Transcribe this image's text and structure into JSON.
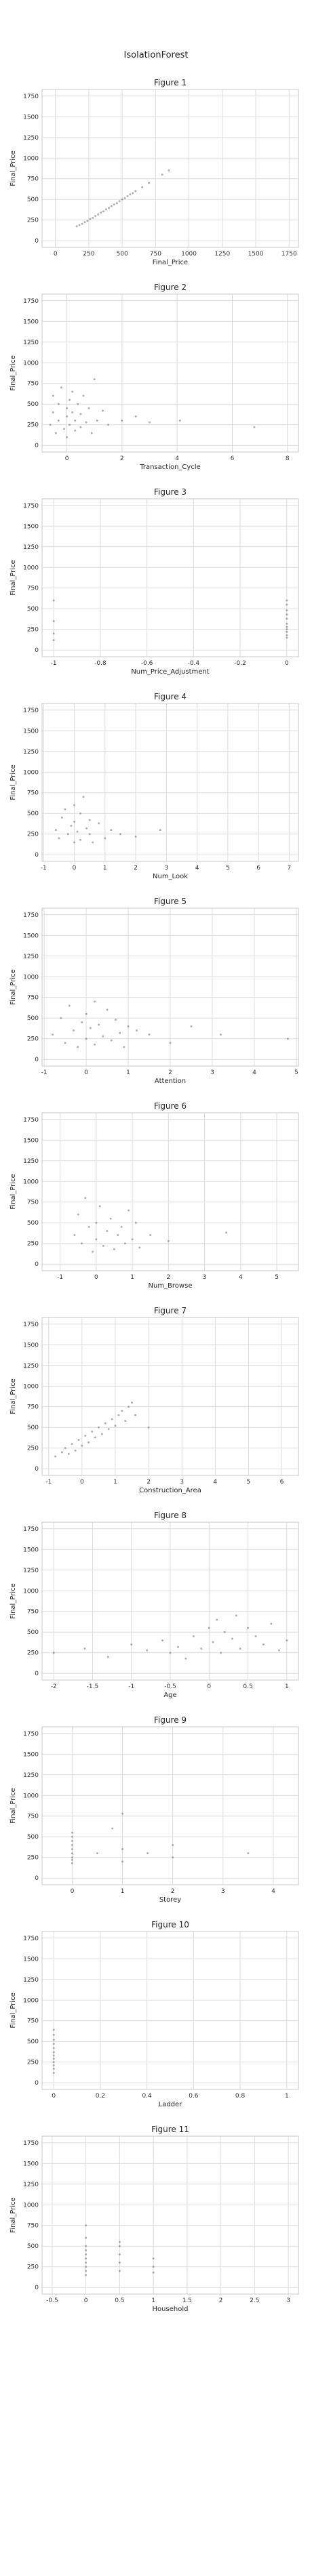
{
  "suptitle": "IsolationForest",
  "chart_data": [
    {
      "type": "scatter",
      "title": "Figure 1",
      "xlabel": "Final_Price",
      "ylabel": "Final_Price",
      "xlim": [
        -100,
        1820
      ],
      "ylim": [
        -80,
        1830
      ],
      "xticks": [
        0,
        250,
        500,
        750,
        1000,
        1250,
        1500,
        1750
      ],
      "yticks": [
        0,
        250,
        500,
        750,
        1000,
        1250,
        1500,
        1750
      ],
      "points": [
        [
          160,
          175
        ],
        [
          180,
          190
        ],
        [
          200,
          205
        ],
        [
          220,
          225
        ],
        [
          240,
          240
        ],
        [
          260,
          262
        ],
        [
          280,
          278
        ],
        [
          300,
          300
        ],
        [
          320,
          318
        ],
        [
          340,
          340
        ],
        [
          360,
          355
        ],
        [
          380,
          380
        ],
        [
          400,
          398
        ],
        [
          420,
          418
        ],
        [
          440,
          440
        ],
        [
          460,
          455
        ],
        [
          480,
          478
        ],
        [
          500,
          500
        ],
        [
          520,
          515
        ],
        [
          540,
          540
        ],
        [
          560,
          560
        ],
        [
          580,
          575
        ],
        [
          600,
          600
        ],
        [
          650,
          648
        ],
        [
          700,
          700
        ],
        [
          800,
          800
        ],
        [
          850,
          850
        ]
      ]
    },
    {
      "type": "scatter",
      "title": "Figure 2",
      "xlabel": "Transaction_Cycle",
      "ylabel": "Final_Price",
      "xlim": [
        -0.9,
        8.4
      ],
      "ylim": [
        -80,
        1830
      ],
      "xticks": [
        0,
        2,
        4,
        6,
        8
      ],
      "yticks": [
        0,
        250,
        500,
        750,
        1000,
        1250,
        1500,
        1750
      ],
      "points": [
        [
          -0.6,
          250
        ],
        [
          -0.5,
          400
        ],
        [
          -0.5,
          600
        ],
        [
          -0.4,
          150
        ],
        [
          -0.3,
          500
        ],
        [
          -0.3,
          300
        ],
        [
          -0.2,
          700
        ],
        [
          -0.1,
          200
        ],
        [
          0,
          450
        ],
        [
          0,
          350
        ],
        [
          0,
          100
        ],
        [
          0.1,
          550
        ],
        [
          0.1,
          250
        ],
        [
          0.2,
          400
        ],
        [
          0.2,
          650
        ],
        [
          0.3,
          300
        ],
        [
          0.3,
          180
        ],
        [
          0.4,
          500
        ],
        [
          0.5,
          220
        ],
        [
          0.5,
          380
        ],
        [
          0.6,
          600
        ],
        [
          0.7,
          280
        ],
        [
          0.8,
          450
        ],
        [
          0.9,
          150
        ],
        [
          1.0,
          800
        ],
        [
          1.1,
          300
        ],
        [
          1.3,
          420
        ],
        [
          1.5,
          250
        ],
        [
          2.0,
          300
        ],
        [
          2.5,
          350
        ],
        [
          3.0,
          280
        ],
        [
          4.1,
          300
        ],
        [
          6.8,
          220
        ]
      ]
    },
    {
      "type": "scatter",
      "title": "Figure 3",
      "xlabel": "Num_Price_Adjustment",
      "ylabel": "Final_Price",
      "xlim": [
        -1.05,
        0.05
      ],
      "ylim": [
        -80,
        1830
      ],
      "xticks": [
        -1.0,
        -0.8,
        -0.6,
        -0.4,
        -0.2,
        0.0
      ],
      "yticks": [
        0,
        250,
        500,
        750,
        1000,
        1250,
        1500,
        1750
      ],
      "points": [
        [
          -1.0,
          120
        ],
        [
          -1.0,
          200
        ],
        [
          -1.0,
          350
        ],
        [
          -1.0,
          600
        ],
        [
          0.0,
          150
        ],
        [
          0.0,
          220
        ],
        [
          0.0,
          280
        ],
        [
          0.0,
          320
        ],
        [
          0.0,
          380
        ],
        [
          0.0,
          430
        ],
        [
          0.0,
          480
        ],
        [
          0.0,
          250
        ],
        [
          0.0,
          180
        ],
        [
          0.0,
          550
        ],
        [
          0.0,
          600
        ]
      ]
    },
    {
      "type": "scatter",
      "title": "Figure 4",
      "xlabel": "Num_Look",
      "ylabel": "Final_Price",
      "xlim": [
        -1.05,
        7.3
      ],
      "ylim": [
        -80,
        1830
      ],
      "xticks": [
        -1,
        0,
        1,
        2,
        3,
        4,
        5,
        6,
        7
      ],
      "yticks": [
        0,
        250,
        500,
        750,
        1000,
        1250,
        1500,
        1750
      ],
      "points": [
        [
          -0.6,
          300
        ],
        [
          -0.5,
          200
        ],
        [
          -0.4,
          450
        ],
        [
          -0.3,
          550
        ],
        [
          -0.2,
          250
        ],
        [
          -0.1,
          350
        ],
        [
          0,
          150
        ],
        [
          0,
          400
        ],
        [
          0,
          600
        ],
        [
          0.1,
          280
        ],
        [
          0.2,
          500
        ],
        [
          0.2,
          180
        ],
        [
          0.3,
          700
        ],
        [
          0.4,
          320
        ],
        [
          0.5,
          420
        ],
        [
          0.5,
          250
        ],
        [
          0.6,
          150
        ],
        [
          0.8,
          380
        ],
        [
          1.0,
          200
        ],
        [
          1.2,
          300
        ],
        [
          1.5,
          250
        ],
        [
          2.0,
          220
        ],
        [
          2.8,
          300
        ]
      ]
    },
    {
      "type": "scatter",
      "title": "Figure 5",
      "xlabel": "Attention",
      "ylabel": "Final_Price",
      "xlim": [
        -1.05,
        5.05
      ],
      "ylim": [
        -80,
        1830
      ],
      "xticks": [
        -1,
        0,
        1,
        2,
        3,
        4,
        5
      ],
      "yticks": [
        0,
        250,
        500,
        750,
        1000,
        1250,
        1500,
        1750
      ],
      "points": [
        [
          -0.8,
          300
        ],
        [
          -0.6,
          500
        ],
        [
          -0.5,
          200
        ],
        [
          -0.4,
          650
        ],
        [
          -0.3,
          350
        ],
        [
          -0.2,
          150
        ],
        [
          -0.1,
          450
        ],
        [
          0,
          250
        ],
        [
          0,
          550
        ],
        [
          0.1,
          380
        ],
        [
          0.2,
          180
        ],
        [
          0.2,
          700
        ],
        [
          0.3,
          420
        ],
        [
          0.4,
          280
        ],
        [
          0.5,
          600
        ],
        [
          0.6,
          230
        ],
        [
          0.7,
          480
        ],
        [
          0.8,
          320
        ],
        [
          0.9,
          150
        ],
        [
          1.0,
          400
        ],
        [
          1.2,
          350
        ],
        [
          1.5,
          300
        ],
        [
          2.0,
          200
        ],
        [
          2.5,
          400
        ],
        [
          3.2,
          300
        ],
        [
          4.8,
          250
        ]
      ]
    },
    {
      "type": "scatter",
      "title": "Figure 6",
      "xlabel": "Num_Browse",
      "ylabel": "Final_Price",
      "xlim": [
        -1.5,
        5.6
      ],
      "ylim": [
        -80,
        1830
      ],
      "xticks": [
        -1,
        0,
        1,
        2,
        3,
        4,
        5
      ],
      "yticks": [
        0,
        250,
        500,
        750,
        1000,
        1250,
        1500,
        1750
      ],
      "points": [
        [
          -0.6,
          350
        ],
        [
          -0.5,
          600
        ],
        [
          -0.4,
          250
        ],
        [
          -0.3,
          800
        ],
        [
          -0.2,
          450
        ],
        [
          -0.1,
          150
        ],
        [
          0,
          300
        ],
        [
          0,
          500
        ],
        [
          0.1,
          700
        ],
        [
          0.2,
          220
        ],
        [
          0.3,
          400
        ],
        [
          0.4,
          550
        ],
        [
          0.5,
          180
        ],
        [
          0.6,
          350
        ],
        [
          0.7,
          450
        ],
        [
          0.8,
          250
        ],
        [
          0.9,
          650
        ],
        [
          1.0,
          300
        ],
        [
          1.1,
          500
        ],
        [
          1.2,
          200
        ],
        [
          1.5,
          350
        ],
        [
          2.0,
          280
        ],
        [
          3.6,
          380
        ]
      ]
    },
    {
      "type": "scatter",
      "title": "Figure 7",
      "xlabel": "Construction_Area",
      "ylabel": "Final_Price",
      "xlim": [
        -1.2,
        6.5
      ],
      "ylim": [
        -80,
        1830
      ],
      "xticks": [
        -1,
        0,
        1,
        2,
        3,
        4,
        5,
        6
      ],
      "yticks": [
        0,
        250,
        500,
        750,
        1000,
        1250,
        1500,
        1750
      ],
      "points": [
        [
          -0.8,
          150
        ],
        [
          -0.6,
          200
        ],
        [
          -0.5,
          250
        ],
        [
          -0.4,
          180
        ],
        [
          -0.3,
          300
        ],
        [
          -0.2,
          220
        ],
        [
          -0.1,
          350
        ],
        [
          0,
          280
        ],
        [
          0.1,
          400
        ],
        [
          0.2,
          320
        ],
        [
          0.3,
          450
        ],
        [
          0.4,
          380
        ],
        [
          0.5,
          500
        ],
        [
          0.6,
          420
        ],
        [
          0.7,
          550
        ],
        [
          0.8,
          480
        ],
        [
          0.9,
          600
        ],
        [
          1.0,
          520
        ],
        [
          1.1,
          650
        ],
        [
          1.2,
          700
        ],
        [
          1.3,
          580
        ],
        [
          1.4,
          750
        ],
        [
          1.5,
          800
        ],
        [
          1.6,
          650
        ],
        [
          2.0,
          500
        ]
      ]
    },
    {
      "type": "scatter",
      "title": "Figure 8",
      "xlabel": "Age",
      "ylabel": "Final_Price",
      "xlim": [
        -2.15,
        1.15
      ],
      "ylim": [
        -80,
        1830
      ],
      "xticks": [
        -2.0,
        -1.5,
        -1.0,
        -0.5,
        0.0,
        0.5,
        1.0
      ],
      "yticks": [
        0,
        250,
        500,
        750,
        1000,
        1250,
        1500,
        1750
      ],
      "points": [
        [
          -2.0,
          250
        ],
        [
          -1.6,
          300
        ],
        [
          -1.3,
          200
        ],
        [
          -1.0,
          350
        ],
        [
          -0.8,
          280
        ],
        [
          -0.6,
          400
        ],
        [
          -0.5,
          250
        ],
        [
          -0.4,
          320
        ],
        [
          -0.3,
          180
        ],
        [
          -0.2,
          450
        ],
        [
          -0.1,
          300
        ],
        [
          0,
          550
        ],
        [
          0.05,
          380
        ],
        [
          0.1,
          650
        ],
        [
          0.15,
          250
        ],
        [
          0.2,
          500
        ],
        [
          0.3,
          420
        ],
        [
          0.35,
          700
        ],
        [
          0.4,
          300
        ],
        [
          0.5,
          550
        ],
        [
          0.6,
          450
        ],
        [
          0.7,
          350
        ],
        [
          0.8,
          600
        ],
        [
          0.9,
          280
        ],
        [
          1.0,
          400
        ]
      ]
    },
    {
      "type": "scatter",
      "title": "Figure 9",
      "xlabel": "Storey",
      "ylabel": "Final_Price",
      "xlim": [
        -0.6,
        4.5
      ],
      "ylim": [
        -80,
        1830
      ],
      "xticks": [
        0,
        1,
        2,
        3,
        4
      ],
      "yticks": [
        0,
        250,
        500,
        750,
        1000,
        1250,
        1500,
        1750
      ],
      "points": [
        [
          0,
          180
        ],
        [
          0,
          250
        ],
        [
          0,
          300
        ],
        [
          0,
          350
        ],
        [
          0,
          400
        ],
        [
          0,
          450
        ],
        [
          0,
          500
        ],
        [
          0,
          550
        ],
        [
          0,
          220
        ],
        [
          0.5,
          300
        ],
        [
          0.8,
          600
        ],
        [
          1.0,
          200
        ],
        [
          1.0,
          350
        ],
        [
          1.0,
          780
        ],
        [
          1.5,
          300
        ],
        [
          2.0,
          400
        ],
        [
          2.0,
          250
        ],
        [
          3.5,
          300
        ]
      ]
    },
    {
      "type": "scatter",
      "title": "Figure 10",
      "xlabel": "Ladder",
      "ylabel": "Final_Price",
      "xlim": [
        -0.05,
        1.05
      ],
      "ylim": [
        -80,
        1830
      ],
      "xticks": [
        0.0,
        0.2,
        0.4,
        0.6,
        0.8,
        1.0
      ],
      "yticks": [
        0,
        250,
        500,
        750,
        1000,
        1250,
        1500,
        1750
      ],
      "points": [
        [
          0,
          120
        ],
        [
          0,
          170
        ],
        [
          0,
          210
        ],
        [
          0,
          250
        ],
        [
          0,
          290
        ],
        [
          0,
          330
        ],
        [
          0,
          370
        ],
        [
          0,
          420
        ],
        [
          0,
          470
        ],
        [
          0,
          520
        ],
        [
          0,
          580
        ],
        [
          0,
          640
        ]
      ]
    },
    {
      "type": "scatter",
      "title": "Figure 11",
      "xlabel": "Household",
      "ylabel": "Final_Price",
      "xlim": [
        -0.65,
        3.15
      ],
      "ylim": [
        -80,
        1830
      ],
      "xticks": [
        -0.5,
        0.0,
        0.5,
        1.0,
        1.5,
        2.0,
        2.5,
        3.0
      ],
      "yticks": [
        0,
        250,
        500,
        750,
        1000,
        1250,
        1500,
        1750
      ],
      "points": [
        [
          0,
          150
        ],
        [
          0,
          200
        ],
        [
          0,
          250
        ],
        [
          0,
          300
        ],
        [
          0,
          350
        ],
        [
          0,
          400
        ],
        [
          0,
          450
        ],
        [
          0,
          500
        ],
        [
          0,
          600
        ],
        [
          0,
          750
        ],
        [
          0.5,
          200
        ],
        [
          0.5,
          300
        ],
        [
          0.5,
          400
        ],
        [
          0.5,
          500
        ],
        [
          0.5,
          550
        ],
        [
          1.0,
          180
        ],
        [
          1.0,
          250
        ],
        [
          1.0,
          350
        ]
      ]
    }
  ]
}
